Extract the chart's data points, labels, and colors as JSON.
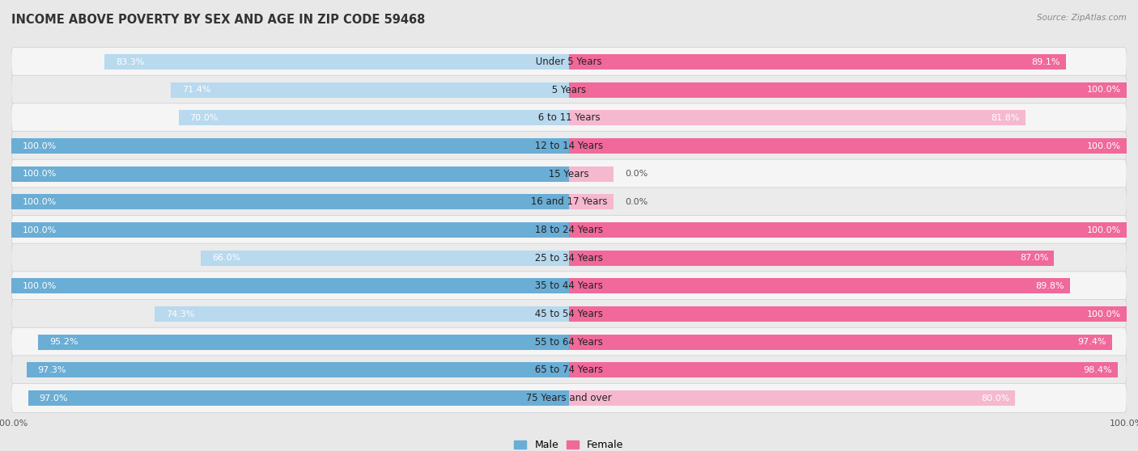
{
  "title": "INCOME ABOVE POVERTY BY SEX AND AGE IN ZIP CODE 59468",
  "source": "Source: ZipAtlas.com",
  "categories": [
    "Under 5 Years",
    "5 Years",
    "6 to 11 Years",
    "12 to 14 Years",
    "15 Years",
    "16 and 17 Years",
    "18 to 24 Years",
    "25 to 34 Years",
    "35 to 44 Years",
    "45 to 54 Years",
    "55 to 64 Years",
    "65 to 74 Years",
    "75 Years and over"
  ],
  "male_values": [
    83.3,
    71.4,
    70.0,
    100.0,
    100.0,
    100.0,
    100.0,
    66.0,
    100.0,
    74.3,
    95.2,
    97.3,
    97.0
  ],
  "female_values": [
    89.1,
    100.0,
    81.8,
    100.0,
    0.0,
    0.0,
    100.0,
    87.0,
    89.8,
    100.0,
    97.4,
    98.4,
    80.0
  ],
  "male_color": "#6aadd5",
  "male_color_light": "#b8d9ee",
  "female_color": "#f0699a",
  "female_color_light": "#f5b8cf",
  "male_label": "Male",
  "female_label": "Female",
  "bar_height": 0.55,
  "background_color": "#e8e8e8",
  "row_bg_color": "#f5f5f5",
  "row_bg_color_alt": "#ebebeb",
  "title_fontsize": 10.5,
  "label_fontsize": 8.5,
  "value_fontsize": 8,
  "axis_tick_fontsize": 8,
  "legend_fontsize": 9
}
